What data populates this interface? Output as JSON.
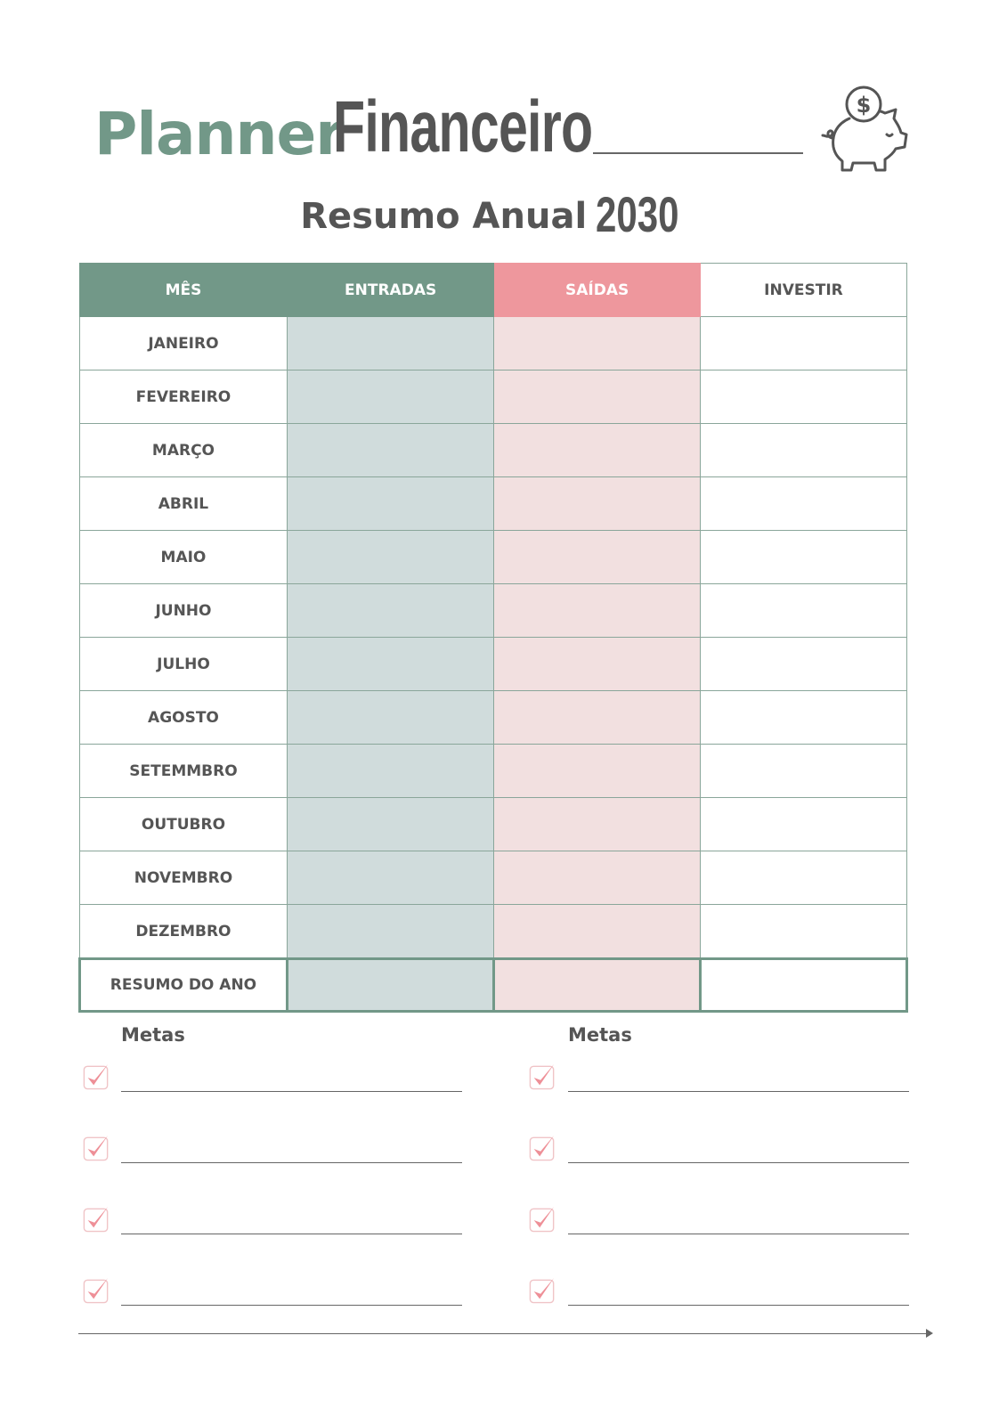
{
  "header": {
    "brand_part1": "Planner",
    "brand_part2": "Financeiro",
    "subtitle": "Resumo Anual",
    "year": "2030",
    "icon": "piggy-bank-icon"
  },
  "table": {
    "columns": [
      "MÊS",
      "ENTRADAS",
      "SAÍDAS",
      "INVESTIR"
    ],
    "months": [
      "JANEIRO",
      "FEVEREIRO",
      "MARÇO",
      "ABRIL",
      "MAIO",
      "JUNHO",
      "JULHO",
      "AGOSTO",
      "SETEMMBRO",
      "OUTUBRO",
      "NOVEMBRO",
      "DEZEMBRO"
    ],
    "summary_label": "RESUMO DO ANO"
  },
  "goals": {
    "left_title": "Metas",
    "right_title": "Metas",
    "items_per_column": 4,
    "icon": "checkbox-checked-icon"
  },
  "colors": {
    "green": "#729888",
    "pink": "#ee979d",
    "light_green": "#d0dcdc",
    "light_pink": "#f2e0e0",
    "text": "#555555"
  }
}
